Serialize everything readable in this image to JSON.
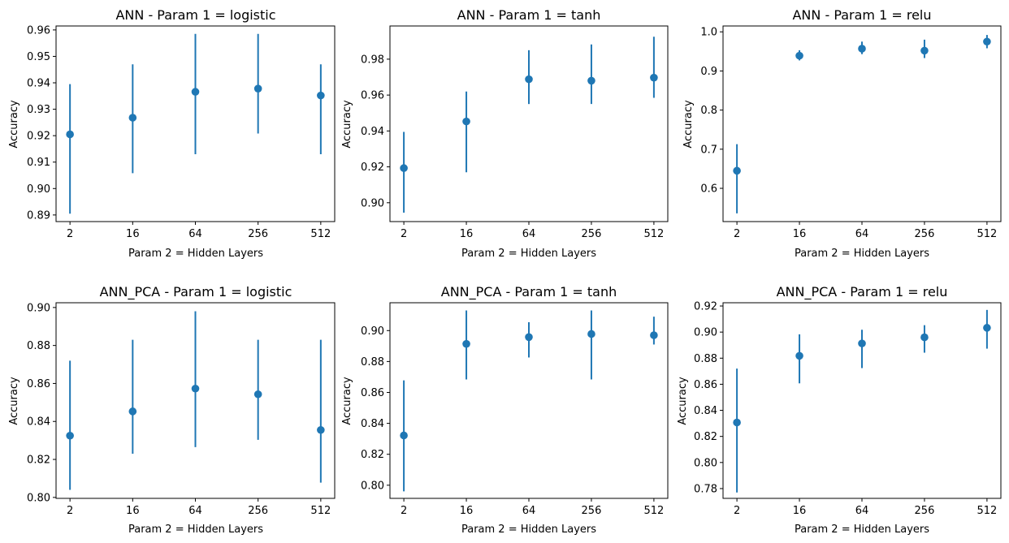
{
  "figure": {
    "marker_color": "#1f77b4"
  },
  "chart_data": [
    {
      "type": "scatter",
      "title": "ANN - Param 1 = logistic",
      "xlabel": "Param 2 = Hidden Layers",
      "ylabel": "Accuracy",
      "categories": [
        "2",
        "16",
        "64",
        "256",
        "512"
      ],
      "values": [
        0.9205,
        0.9268,
        0.9366,
        0.9378,
        0.9352
      ],
      "error_low": [
        0.8905,
        0.9058,
        0.913,
        0.9208,
        0.913
      ],
      "error_high": [
        0.9395,
        0.947,
        0.9585,
        0.9585,
        0.947
      ],
      "yticks": [
        0.89,
        0.9,
        0.91,
        0.92,
        0.93,
        0.94,
        0.95,
        0.96
      ],
      "ytick_labels": [
        "0.89",
        "0.90",
        "0.91",
        "0.92",
        "0.93",
        "0.94",
        "0.95",
        "0.96"
      ],
      "ylim": [
        0.8875,
        0.9615
      ],
      "grid": false,
      "legend": false
    },
    {
      "type": "scatter",
      "title": "ANN - Param 1 = tanh",
      "xlabel": "Param 2 = Hidden Layers",
      "ylabel": "Accuracy",
      "categories": [
        "2",
        "16",
        "64",
        "256",
        "512"
      ],
      "values": [
        0.9193,
        0.9453,
        0.9688,
        0.968,
        0.9697
      ],
      "error_low": [
        0.8945,
        0.917,
        0.955,
        0.955,
        0.9585
      ],
      "error_high": [
        0.9395,
        0.962,
        0.985,
        0.9882,
        0.9925
      ],
      "yticks": [
        0.9,
        0.92,
        0.94,
        0.96,
        0.98
      ],
      "ytick_labels": [
        "0.90",
        "0.92",
        "0.94",
        "0.96",
        "0.98"
      ],
      "ylim": [
        0.8895,
        0.9985
      ],
      "grid": false,
      "legend": false
    },
    {
      "type": "scatter",
      "title": "ANN - Param 1 = relu",
      "xlabel": "Param 2 = Hidden Layers",
      "ylabel": "Accuracy",
      "categories": [
        "2",
        "16",
        "64",
        "256",
        "512"
      ],
      "values": [
        0.645,
        0.939,
        0.957,
        0.952,
        0.975
      ],
      "error_low": [
        0.536,
        0.927,
        0.943,
        0.933,
        0.958
      ],
      "error_high": [
        0.713,
        0.953,
        0.975,
        0.98,
        0.992
      ],
      "yticks": [
        0.6,
        0.7,
        0.8,
        0.9,
        1.0
      ],
      "ytick_labels": [
        "0.6",
        "0.7",
        "0.8",
        "0.9",
        "1.0"
      ],
      "ylim": [
        0.515,
        1.015
      ],
      "grid": false,
      "legend": false
    },
    {
      "type": "scatter",
      "title": "ANN_PCA - Param 1 = logistic",
      "xlabel": "Param 2 = Hidden Layers",
      "ylabel": "Accuracy",
      "categories": [
        "2",
        "16",
        "64",
        "256",
        "512"
      ],
      "values": [
        0.8325,
        0.8453,
        0.8573,
        0.8543,
        0.8355
      ],
      "error_low": [
        0.804,
        0.823,
        0.8265,
        0.8303,
        0.8078
      ],
      "error_high": [
        0.872,
        0.883,
        0.898,
        0.883,
        0.883
      ],
      "yticks": [
        0.8,
        0.82,
        0.84,
        0.86,
        0.88,
        0.9
      ],
      "ytick_labels": [
        "0.80",
        "0.82",
        "0.84",
        "0.86",
        "0.88",
        "0.90"
      ],
      "ylim": [
        0.7995,
        0.9025
      ],
      "grid": false,
      "legend": false
    },
    {
      "type": "scatter",
      "title": "ANN_PCA - Param 1 = tanh",
      "xlabel": "Param 2 = Hidden Layers",
      "ylabel": "Accuracy",
      "categories": [
        "2",
        "16",
        "64",
        "256",
        "512"
      ],
      "values": [
        0.8322,
        0.8914,
        0.8958,
        0.8978,
        0.897
      ],
      "error_low": [
        0.796,
        0.8684,
        0.8826,
        0.8684,
        0.891
      ],
      "error_high": [
        0.8678,
        0.913,
        0.9054,
        0.913,
        0.909
      ],
      "yticks": [
        0.8,
        0.82,
        0.84,
        0.86,
        0.88,
        0.9
      ],
      "ytick_labels": [
        "0.80",
        "0.82",
        "0.84",
        "0.86",
        "0.88",
        "0.90"
      ],
      "ylim": [
        0.7915,
        0.918
      ],
      "grid": false,
      "legend": false
    },
    {
      "type": "scatter",
      "title": "ANN_PCA - Param 1 = relu",
      "xlabel": "Param 2 = Hidden Layers",
      "ylabel": "Accuracy",
      "categories": [
        "2",
        "16",
        "64",
        "256",
        "512"
      ],
      "values": [
        0.8307,
        0.8818,
        0.8913,
        0.896,
        0.9033
      ],
      "error_low": [
        0.777,
        0.8607,
        0.8724,
        0.8842,
        0.8873
      ],
      "error_high": [
        0.872,
        0.8983,
        0.9018,
        0.9053,
        0.917
      ],
      "yticks": [
        0.78,
        0.8,
        0.82,
        0.84,
        0.86,
        0.88,
        0.9,
        0.92
      ],
      "ytick_labels": [
        "0.78",
        "0.80",
        "0.82",
        "0.84",
        "0.86",
        "0.88",
        "0.90",
        "0.92"
      ],
      "ylim": [
        0.7725,
        0.9225
      ],
      "grid": false,
      "legend": false
    }
  ]
}
